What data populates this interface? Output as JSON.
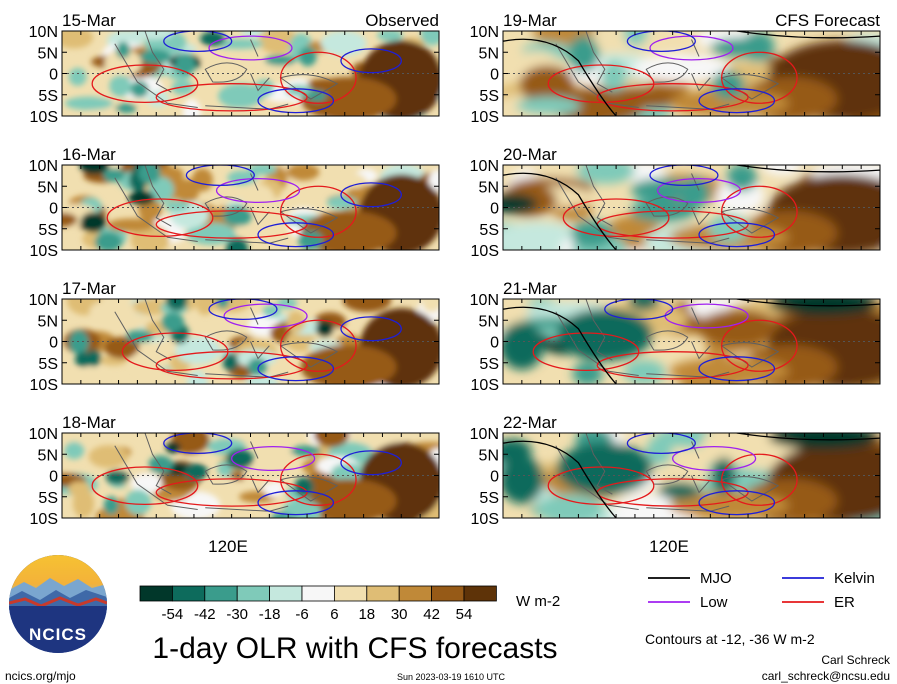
{
  "title": "1-day OLR with CFS forecasts",
  "observed_label": "Observed",
  "forecast_label": "CFS Forecast",
  "observed_dates": [
    "15-Mar",
    "16-Mar",
    "17-Mar",
    "18-Mar"
  ],
  "forecast_dates": [
    "19-Mar",
    "20-Mar",
    "21-Mar",
    "22-Mar"
  ],
  "lat_ticks": [
    "10N",
    "5N",
    "0",
    "5S",
    "10S"
  ],
  "lon_label": "120E",
  "colorbar": {
    "ticks": [
      "-54",
      "-42",
      "-30",
      "-18",
      "-6",
      "6",
      "18",
      "30",
      "42",
      "54"
    ],
    "unit": "W m-2",
    "colors": [
      "#01372a",
      "#0d6b5c",
      "#3a9c8c",
      "#7fcab9",
      "#c5e8de",
      "#f7f7f7",
      "#f1dfb0",
      "#dfbd75",
      "#c08938",
      "#965a17",
      "#5e3308"
    ]
  },
  "legend": {
    "items": [
      {
        "label": "MJO",
        "color": "#000000"
      },
      {
        "label": "Kelvin",
        "color": "#1f1fd6"
      },
      {
        "label": "Low",
        "color": "#a020f0"
      },
      {
        "label": "ER",
        "color": "#e41a1c"
      }
    ],
    "note": "Contours at -12, -36 W m-2"
  },
  "logo_text": "NCICS",
  "footer": {
    "website": "ncics.org/mjo",
    "timestamp": "Sun 2023-03-19 1610 UTC",
    "author": "Carl Schreck",
    "email": "carl_schreck@ncsu.edu"
  },
  "chart_data": {
    "type": "heatmap",
    "variable": "OLR anomaly",
    "units": "W m-2",
    "contour_levels": [
      -12,
      -36
    ],
    "ylim": [
      "10S",
      "10N"
    ],
    "panels": [
      {
        "date": "15-Mar",
        "source": "Observed"
      },
      {
        "date": "16-Mar",
        "source": "Observed"
      },
      {
        "date": "17-Mar",
        "source": "Observed"
      },
      {
        "date": "18-Mar",
        "source": "Observed"
      },
      {
        "date": "19-Mar",
        "source": "CFS Forecast"
      },
      {
        "date": "20-Mar",
        "source": "CFS Forecast"
      },
      {
        "date": "21-Mar",
        "source": "CFS Forecast"
      },
      {
        "date": "22-Mar",
        "source": "CFS Forecast"
      }
    ]
  }
}
